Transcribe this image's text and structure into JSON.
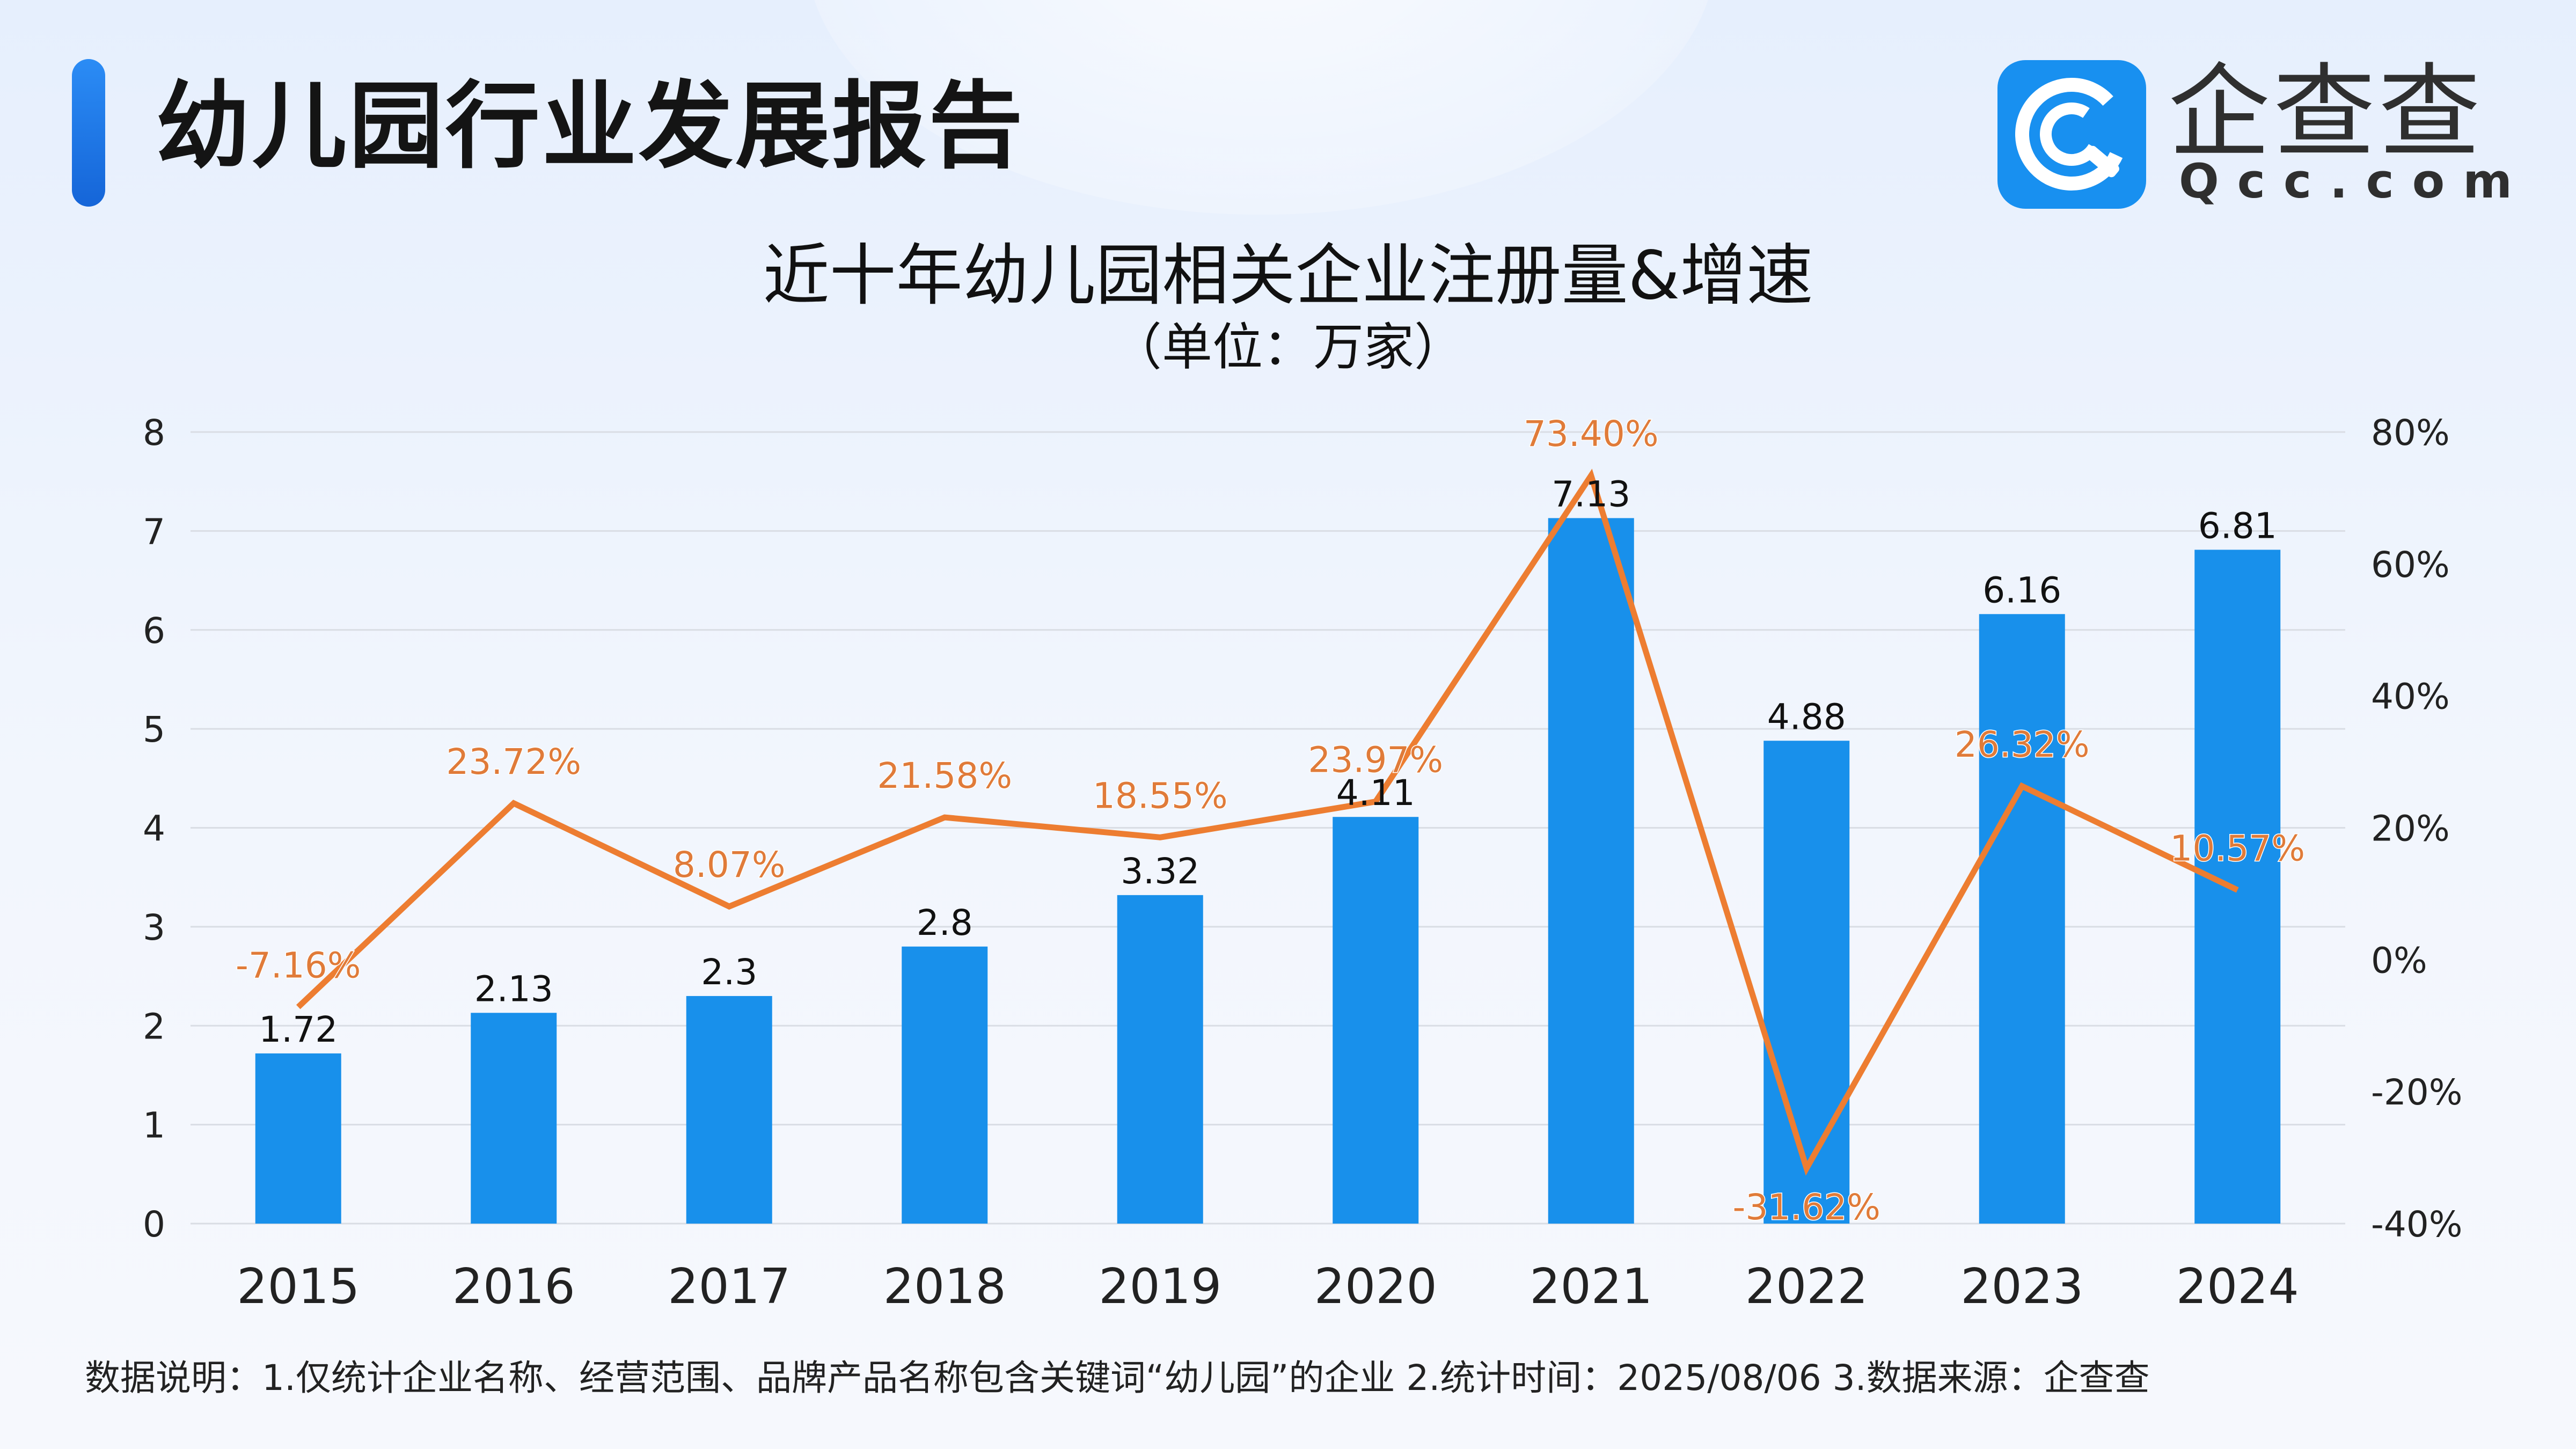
{
  "header": {
    "title": "幼儿园行业发展报告"
  },
  "brand": {
    "name": "企查查",
    "url": "Qcc.com",
    "color": "#1890f0"
  },
  "chart_data": {
    "type": "bar",
    "title": "近十年幼儿园相关企业注册量&增速",
    "subtitle": "（单位：万家）",
    "categories": [
      "2015",
      "2016",
      "2017",
      "2018",
      "2019",
      "2020",
      "2021",
      "2022",
      "2023",
      "2024"
    ],
    "series": [
      {
        "type": "bar",
        "axis": "left",
        "color": "#1890eb",
        "values": [
          1.72,
          2.13,
          2.3,
          2.8,
          3.32,
          4.11,
          7.13,
          4.88,
          6.16,
          6.81
        ],
        "labels": [
          "1.72",
          "2.13",
          "2.3",
          "2.8",
          "3.32",
          "4.11",
          "7.13",
          "4.88",
          "6.16",
          "6.81"
        ]
      },
      {
        "type": "line",
        "axis": "right",
        "color": "#ed7d31",
        "values": [
          -7.16,
          23.72,
          8.07,
          21.58,
          18.55,
          23.97,
          73.4,
          -31.62,
          26.32,
          10.57
        ],
        "labels": [
          "-7.16%",
          "23.72%",
          "8.07%",
          "21.58%",
          "18.55%",
          "23.97%",
          "73.40%",
          "-31.62%",
          "26.32%",
          "10.57%"
        ]
      }
    ],
    "y_left": {
      "range": [
        0,
        8
      ],
      "ticks": [
        "0",
        "1",
        "2",
        "3",
        "4",
        "5",
        "6",
        "7",
        "8"
      ]
    },
    "y_right": {
      "range": [
        -40,
        80
      ],
      "ticks": [
        "-40%",
        "-20%",
        "0%",
        "20%",
        "40%",
        "60%",
        "80%"
      ]
    },
    "grid": true,
    "legend": "none"
  },
  "footer": {
    "note": "数据说明：1.仅统计企业名称、经营范围、品牌产品名称包含关键词“幼儿园”的企业    2.统计时间：2025/08/06    3.数据来源：企查查"
  }
}
